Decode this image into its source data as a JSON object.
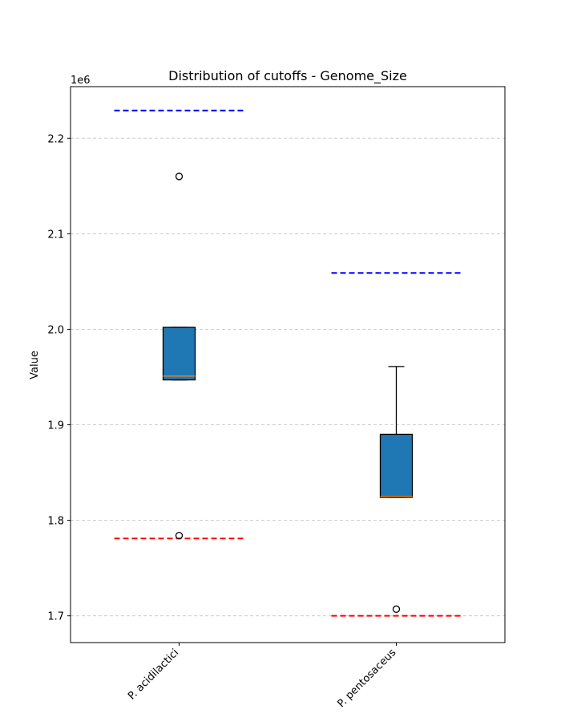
{
  "chart_data": {
    "type": "boxplot",
    "title": "Distribution of cutoffs - Genome_Size",
    "xlabel": "",
    "ylabel": "Value",
    "y_multiplier_label": "1e6",
    "ylim": [
      1.672,
      2.254
    ],
    "y_ticks": [
      1.7,
      1.8,
      1.9,
      2.0,
      2.1,
      2.2
    ],
    "y_tick_labels": [
      "1.7",
      "1.8",
      "1.9",
      "2.0",
      "2.1",
      "2.2"
    ],
    "grid": "y-dashed",
    "categories": [
      "P. acidilactici",
      "P. pentosaceus"
    ],
    "boxes": [
      {
        "category": "P. acidilactici",
        "whisker_low": 1.947,
        "q1": 1.947,
        "median": 1.951,
        "q3": 2.002,
        "whisker_high": 2.002,
        "outliers": [
          2.16,
          1.784
        ],
        "upper_cutoff": 2.229,
        "lower_cutoff": 1.781
      },
      {
        "category": "P. pentosaceus",
        "whisker_low": 1.824,
        "q1": 1.824,
        "median": 1.825,
        "q3": 1.89,
        "whisker_high": 1.961,
        "outliers": [
          1.707
        ],
        "upper_cutoff": 2.059,
        "lower_cutoff": 1.7
      }
    ],
    "colors": {
      "box_fill": "#1f77b4",
      "median": "#ff7f0e",
      "upper_cutoff": "#0000ff",
      "lower_cutoff": "#ff0000",
      "grid": "#cccccc"
    }
  }
}
